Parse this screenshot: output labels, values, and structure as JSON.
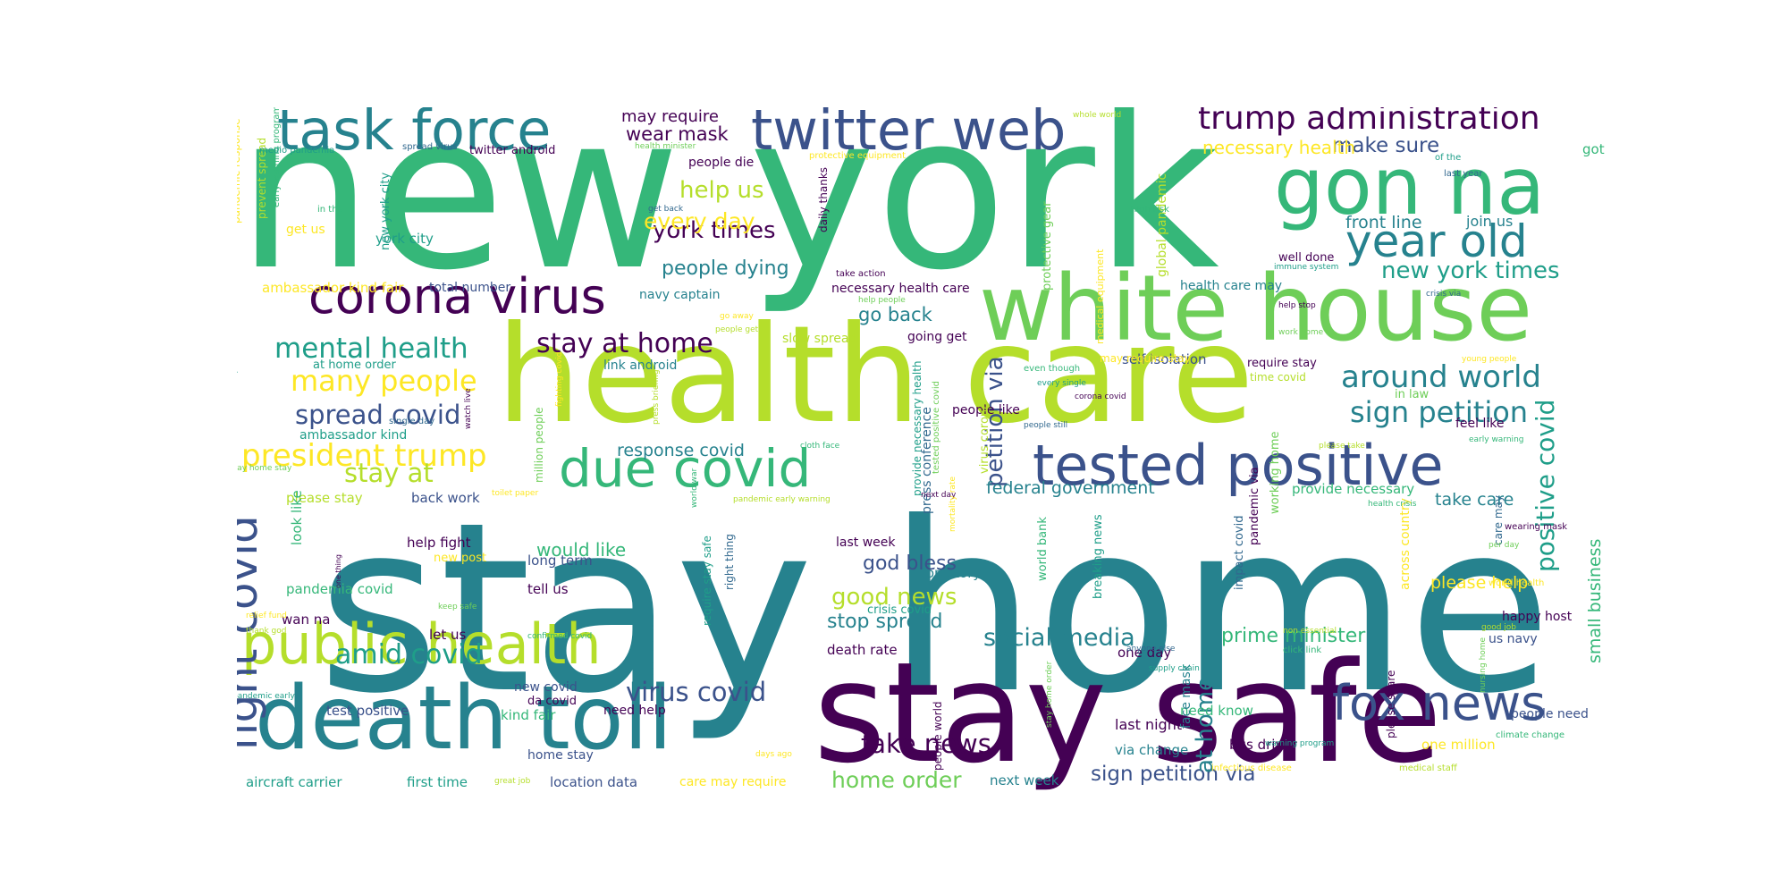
{
  "palette": {
    "dark": "#440154",
    "indigo": "#3b528b",
    "blue": "#31688e",
    "teal": "#26828e",
    "tealgreen": "#1f9e89",
    "green": "#35b779",
    "brightgreen": "#6ece58",
    "lime": "#b5de2b",
    "yellow": "#fde725"
  },
  "words": [
    {
      "text": "new york",
      "color": "green"
    },
    {
      "text": "stay home",
      "color": "teal"
    },
    {
      "text": "health care",
      "color": "lime"
    },
    {
      "text": "stay safe",
      "color": "dark"
    },
    {
      "text": "death toll",
      "color": "teal"
    },
    {
      "text": "white house",
      "color": "brightgreen"
    },
    {
      "text": "tested positive",
      "color": "indigo"
    },
    {
      "text": "gon na",
      "color": "green"
    },
    {
      "text": "task force",
      "color": "teal"
    },
    {
      "text": "twitter web",
      "color": "indigo"
    },
    {
      "text": "corona virus",
      "color": "dark"
    },
    {
      "text": "public health",
      "color": "lime"
    },
    {
      "text": "due covid",
      "color": "green"
    },
    {
      "text": "fox news",
      "color": "indigo"
    },
    {
      "text": "year old",
      "color": "teal"
    },
    {
      "text": "trump administration",
      "color": "dark"
    },
    {
      "text": "fight covid",
      "color": "indigo"
    },
    {
      "text": "positive covid",
      "color": "tealgreen"
    },
    {
      "text": "president trump",
      "color": "yellow"
    },
    {
      "text": "mental health",
      "color": "tealgreen"
    },
    {
      "text": "many people",
      "color": "yellow"
    },
    {
      "text": "spread covid",
      "color": "indigo"
    },
    {
      "text": "stay at home",
      "color": "dark"
    },
    {
      "text": "stay at",
      "color": "lime"
    },
    {
      "text": "around world",
      "color": "teal"
    },
    {
      "text": "sign petition",
      "color": "teal"
    },
    {
      "text": "new york times",
      "color": "tealgreen"
    },
    {
      "text": "amid covid",
      "color": "tealgreen"
    },
    {
      "text": "virus covid",
      "color": "indigo"
    },
    {
      "text": "fake news",
      "color": "dark"
    },
    {
      "text": "home order",
      "color": "brightgreen"
    },
    {
      "text": "social media",
      "color": "teal"
    },
    {
      "text": "good news",
      "color": "lime"
    },
    {
      "text": "stop spread",
      "color": "teal"
    },
    {
      "text": "sign petition via",
      "color": "indigo"
    },
    {
      "text": "prime minister",
      "color": "green"
    },
    {
      "text": "at home",
      "color": "teal"
    },
    {
      "text": "petition via",
      "color": "indigo"
    },
    {
      "text": "york times",
      "color": "dark"
    },
    {
      "text": "people dying",
      "color": "teal"
    },
    {
      "text": "help us",
      "color": "lime"
    },
    {
      "text": "every day",
      "color": "yellow"
    },
    {
      "text": "wear mask",
      "color": "dark"
    },
    {
      "text": "make sure",
      "color": "indigo"
    },
    {
      "text": "necessary health",
      "color": "yellow"
    },
    {
      "text": "front line",
      "color": "teal"
    },
    {
      "text": "join us",
      "color": "teal"
    },
    {
      "text": "got ta",
      "color": "green"
    },
    {
      "text": "may require",
      "color": "dark"
    },
    {
      "text": "would like",
      "color": "green"
    },
    {
      "text": "god bless",
      "color": "indigo"
    },
    {
      "text": "response covid",
      "color": "teal"
    },
    {
      "text": "go back",
      "color": "teal"
    },
    {
      "text": "please help",
      "color": "yellow"
    },
    {
      "text": "small business",
      "color": "green"
    },
    {
      "text": "federal government",
      "color": "teal"
    },
    {
      "text": "take care",
      "color": "teal"
    },
    {
      "text": "provide necessary",
      "color": "green"
    },
    {
      "text": "feel like",
      "color": "dark"
    },
    {
      "text": "people need",
      "color": "indigo"
    },
    {
      "text": "one million",
      "color": "yellow"
    },
    {
      "text": "bus driver",
      "color": "dark"
    },
    {
      "text": "last night",
      "color": "dark"
    },
    {
      "text": "need know",
      "color": "green"
    },
    {
      "text": "via change",
      "color": "teal"
    },
    {
      "text": "next week",
      "color": "teal"
    },
    {
      "text": "location data",
      "color": "indigo"
    },
    {
      "text": "care may require",
      "color": "yellow"
    },
    {
      "text": "aircraft carrier",
      "color": "tealgreen"
    },
    {
      "text": "first time",
      "color": "tealgreen"
    },
    {
      "text": "test positive",
      "color": "indigo"
    },
    {
      "text": "kind fair",
      "color": "green"
    },
    {
      "text": "need help",
      "color": "dark"
    },
    {
      "text": "home stay",
      "color": "indigo"
    },
    {
      "text": "new covid",
      "color": "indigo"
    },
    {
      "text": "da covid",
      "color": "dark"
    },
    {
      "text": "pandemia covid",
      "color": "green"
    },
    {
      "text": "long term",
      "color": "indigo"
    },
    {
      "text": "tell us",
      "color": "dark"
    },
    {
      "text": "help fight",
      "color": "dark"
    },
    {
      "text": "new post",
      "color": "yellow"
    },
    {
      "text": "please stay",
      "color": "lime"
    },
    {
      "text": "back work",
      "color": "indigo"
    },
    {
      "text": "last week",
      "color": "dark"
    },
    {
      "text": "top story",
      "color": "teal"
    },
    {
      "text": "death rate",
      "color": "dark"
    },
    {
      "text": "one day",
      "color": "dark"
    },
    {
      "text": "let us",
      "color": "dark"
    },
    {
      "text": "wan na",
      "color": "dark"
    },
    {
      "text": "link android",
      "color": "teal"
    },
    {
      "text": "slow spread",
      "color": "lime"
    },
    {
      "text": "going get",
      "color": "dark"
    },
    {
      "text": "people like",
      "color": "dark"
    },
    {
      "text": "self isolation",
      "color": "indigo"
    },
    {
      "text": "require stay",
      "color": "dark"
    },
    {
      "text": "may require stay",
      "color": "yellow"
    },
    {
      "text": "time covid",
      "color": "lime"
    },
    {
      "text": "in law",
      "color": "brightgreen"
    },
    {
      "text": "health care may",
      "color": "teal"
    },
    {
      "text": "well done",
      "color": "dark"
    },
    {
      "text": "people die",
      "color": "dark"
    },
    {
      "text": "total number",
      "color": "indigo"
    },
    {
      "text": "navy captain",
      "color": "teal"
    },
    {
      "text": "ambassador kind fair",
      "color": "yellow"
    },
    {
      "text": "ambassador kind",
      "color": "tealgreen"
    },
    {
      "text": "at home order",
      "color": "tealgreen"
    },
    {
      "text": "york city",
      "color": "tealgreen"
    },
    {
      "text": "get us",
      "color": "yellow"
    },
    {
      "text": "necessary health care",
      "color": "dark"
    },
    {
      "text": "happy host",
      "color": "dark"
    },
    {
      "text": "us navy",
      "color": "indigo"
    },
    {
      "text": "crisis covid",
      "color": "tealgreen"
    },
    {
      "text": "face mask",
      "color": "teal"
    }
  ],
  "small_words": [
    "pandemic response",
    "prevent spread",
    "early warning program",
    "medio pandemia",
    "spread virus",
    "twitter android",
    "health minister",
    "protective equipment",
    "whole world",
    "in the",
    "new york city",
    "get back",
    "daily thanks",
    "protective gear",
    "medical equipment",
    "global pandemic",
    "high risk",
    "immune system",
    "crisis via",
    "help stop",
    "work home",
    "young people",
    "please take",
    "early warning",
    "home stay safe",
    "single day",
    "watch live",
    "million people",
    "fighting covid",
    "press briefing",
    "cloth face",
    "provide necessary health",
    "press conference",
    "next day",
    "tested positive covid",
    "mortality rate",
    "virus corona",
    "even though",
    "every single",
    "people still",
    "corona covid",
    "stay home stay",
    "toilet paper",
    "pandemic early warning",
    "world war",
    "require stay safe",
    "right thing",
    "one thing",
    "keep safe",
    "relief fund",
    "thank god",
    "confirmed covid",
    "pandemic early",
    "premier league",
    "people world",
    "stay home order",
    "days ago",
    "great job",
    "world bank",
    "breaking news",
    "impact covid",
    "pandemic via",
    "working home",
    "across country",
    "non essential",
    "click link",
    "supply chain",
    "anyone else",
    "please share",
    "nursing home",
    "infectious disease",
    "medical staff",
    "climate change",
    "warning program",
    "care may",
    "wearing mask",
    "per day",
    "world health",
    "good job",
    "health crisis",
    "of the",
    "last year",
    "take action",
    "help people",
    "go away",
    "people get",
    "look like"
  ]
}
